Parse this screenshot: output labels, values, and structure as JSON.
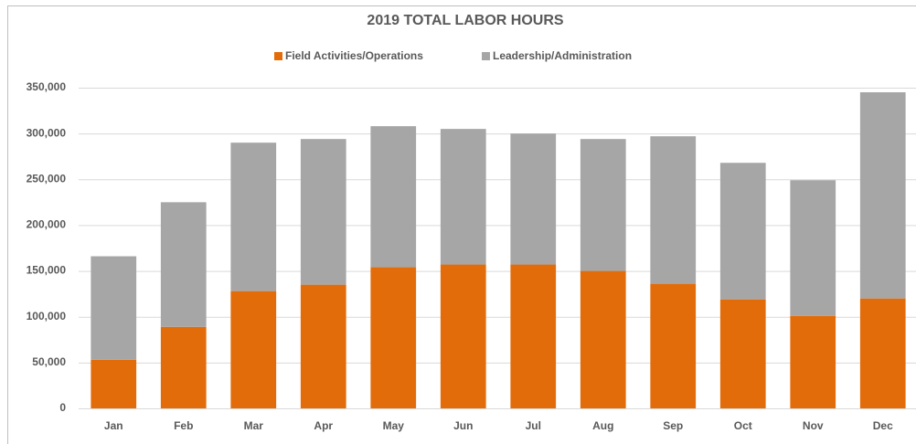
{
  "chart_data": {
    "type": "bar",
    "stacked": true,
    "title": "2019 TOTAL LABOR HOURS",
    "categories": [
      "Jan",
      "Feb",
      "Mar",
      "Apr",
      "May",
      "Jun",
      "Jul",
      "Aug",
      "Sep",
      "Oct",
      "Nov",
      "Dec"
    ],
    "series": [
      {
        "name": "Field Activities/Operations",
        "color": "#e36c0a",
        "values": [
          53000,
          89000,
          128000,
          135000,
          154000,
          157000,
          157000,
          150000,
          136000,
          119000,
          101000,
          120000
        ]
      },
      {
        "name": "Leadership/Administration",
        "color": "#a6a6a6",
        "values": [
          113000,
          136000,
          162000,
          159000,
          154000,
          148000,
          143000,
          144000,
          161000,
          149000,
          148000,
          225000
        ]
      }
    ],
    "ylim": [
      0,
      350000
    ],
    "yticks": [
      0,
      {
        "value": 50000,
        "label": "50,000"
      },
      {
        "value": 100000,
        "label": "100,000"
      },
      {
        "value": 150000,
        "label": "150,000"
      },
      {
        "value": 200000,
        "label": "200,000"
      },
      {
        "value": 250000,
        "label": "250,000"
      },
      {
        "value": 300000,
        "label": "300,000"
      },
      {
        "value": 350000,
        "label": "350,000"
      }
    ],
    "grid": true,
    "legend": "top"
  }
}
